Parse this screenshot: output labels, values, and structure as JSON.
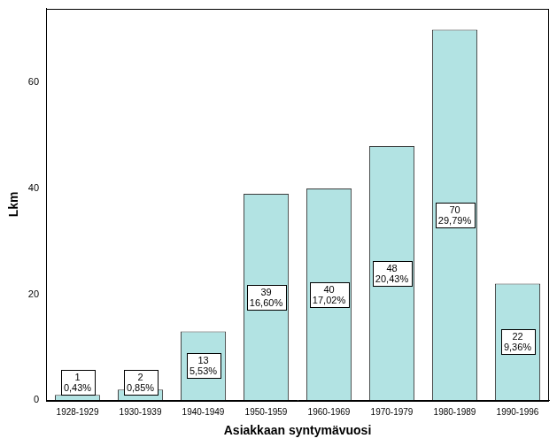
{
  "chart_data": {
    "type": "bar",
    "x_label": "Asiakkaan syntymävuosi",
    "y_label": "Lkm",
    "categories": [
      "1928-1929",
      "1930-1939",
      "1940-1949",
      "1950-1959",
      "1960-1969",
      "1970-1979",
      "1980-1989",
      "1990-1996"
    ],
    "values": [
      1,
      2,
      13,
      39,
      40,
      48,
      70,
      22
    ],
    "value_labels": [
      [
        "1",
        "0,43%"
      ],
      [
        "2",
        "0,85%"
      ],
      [
        "13",
        "5,53%"
      ],
      [
        "39",
        "16,60%"
      ],
      [
        "40",
        "17,02%"
      ],
      [
        "48",
        "20,43%"
      ],
      [
        "70",
        "29,79%"
      ],
      [
        "22",
        "9,36%"
      ]
    ],
    "data_labels": true,
    "color": "#b2e3e3",
    "ylim": [
      0,
      74
    ],
    "yticks": [
      0,
      20,
      40,
      60
    ],
    "grid": false
  }
}
